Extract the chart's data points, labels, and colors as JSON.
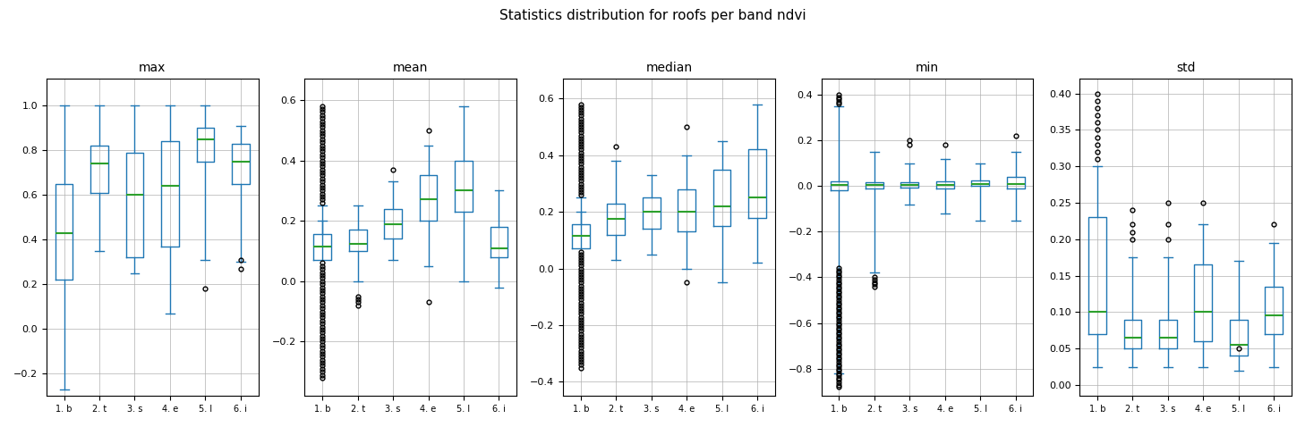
{
  "title": "Statistics distribution for roofs per band ndvi",
  "subplots": [
    "max",
    "mean",
    "median",
    "min",
    "std"
  ],
  "x_labels": [
    "1. b",
    "2. t",
    "3. s",
    "4. e",
    "5. l",
    "6. i"
  ],
  "subplot_data": {
    "max": {
      "ylim": [
        -0.3,
        1.12
      ],
      "yticks": [
        -0.2,
        0.0,
        0.2,
        0.4,
        0.6,
        0.8,
        1.0
      ],
      "boxes": [
        {
          "q1": 0.22,
          "median": 0.43,
          "q3": 0.65,
          "whislo": -0.27,
          "whishi": 1.0,
          "fliers": []
        },
        {
          "q1": 0.61,
          "median": 0.74,
          "q3": 0.82,
          "whislo": 0.35,
          "whishi": 1.0,
          "fliers": []
        },
        {
          "q1": 0.32,
          "median": 0.6,
          "q3": 0.79,
          "whislo": 0.25,
          "whishi": 1.0,
          "fliers": []
        },
        {
          "q1": 0.37,
          "median": 0.64,
          "q3": 0.84,
          "whislo": 0.07,
          "whishi": 1.0,
          "fliers": []
        },
        {
          "q1": 0.75,
          "median": 0.85,
          "q3": 0.9,
          "whislo": 0.31,
          "whishi": 1.0,
          "fliers": [
            0.18
          ]
        },
        {
          "q1": 0.65,
          "median": 0.75,
          "q3": 0.83,
          "whislo": 0.3,
          "whishi": 0.91,
          "fliers": [
            0.27,
            0.31
          ]
        }
      ]
    },
    "mean": {
      "ylim": [
        -0.38,
        0.67
      ],
      "yticks": [
        -0.2,
        0.0,
        0.2,
        0.4,
        0.6
      ],
      "boxes": [
        {
          "q1": 0.07,
          "median": 0.115,
          "q3": 0.155,
          "whislo": 0.2,
          "whishi": 0.25,
          "fliers_dense_lo": [
            -0.32,
            -0.31,
            -0.3,
            -0.29,
            -0.28,
            -0.27,
            -0.26,
            -0.25,
            -0.24,
            -0.23,
            -0.22,
            -0.21,
            -0.2,
            -0.19,
            -0.18,
            -0.17,
            -0.16,
            -0.15,
            -0.14,
            -0.13,
            -0.12,
            -0.11,
            -0.1,
            -0.09,
            -0.08,
            -0.07,
            -0.06,
            -0.05,
            -0.04,
            -0.03,
            -0.02,
            -0.01,
            0.0,
            0.01,
            0.02,
            0.03,
            0.04,
            0.05,
            0.06
          ],
          "fliers_dense_hi": [
            0.26,
            0.27,
            0.28,
            0.29,
            0.3,
            0.31,
            0.32,
            0.33,
            0.34,
            0.35,
            0.36,
            0.37,
            0.38,
            0.39,
            0.4,
            0.41,
            0.42,
            0.43,
            0.44,
            0.45,
            0.46,
            0.47,
            0.48,
            0.49,
            0.5,
            0.51,
            0.52,
            0.53,
            0.54,
            0.55,
            0.56,
            0.57,
            0.58
          ]
        },
        {
          "q1": 0.1,
          "median": 0.125,
          "q3": 0.17,
          "whislo": 0.0,
          "whishi": 0.25,
          "fliers_dense_lo": [],
          "fliers_dense_hi": [
            -0.08,
            -0.07,
            -0.06,
            -0.05
          ]
        },
        {
          "q1": 0.14,
          "median": 0.19,
          "q3": 0.24,
          "whislo": 0.07,
          "whishi": 0.33,
          "fliers_dense_lo": [],
          "fliers_dense_hi": [
            0.37
          ]
        },
        {
          "q1": 0.2,
          "median": 0.27,
          "q3": 0.35,
          "whislo": 0.05,
          "whishi": 0.45,
          "fliers_dense_lo": [
            -0.07
          ],
          "fliers_dense_hi": [
            0.5
          ]
        },
        {
          "q1": 0.23,
          "median": 0.3,
          "q3": 0.4,
          "whislo": 0.0,
          "whishi": 0.58,
          "fliers_dense_lo": [],
          "fliers_dense_hi": []
        },
        {
          "q1": 0.08,
          "median": 0.11,
          "q3": 0.18,
          "whislo": -0.02,
          "whishi": 0.3,
          "fliers_dense_lo": [],
          "fliers_dense_hi": []
        }
      ]
    },
    "median": {
      "ylim": [
        -0.45,
        0.67
      ],
      "yticks": [
        -0.4,
        -0.2,
        0.0,
        0.2,
        0.4,
        0.6
      ],
      "boxes": [
        {
          "q1": 0.07,
          "median": 0.115,
          "q3": 0.155,
          "whislo": 0.2,
          "whishi": 0.25,
          "fliers_dense_lo": [
            -0.35,
            -0.34,
            -0.33,
            -0.32,
            -0.31,
            -0.3,
            -0.29,
            -0.28,
            -0.27,
            -0.26,
            -0.25,
            -0.24,
            -0.23,
            -0.22,
            -0.21,
            -0.2,
            -0.19,
            -0.18,
            -0.17,
            -0.16,
            -0.15,
            -0.14,
            -0.13,
            -0.12,
            -0.11,
            -0.1,
            -0.09,
            -0.08,
            -0.07,
            -0.06,
            -0.05,
            -0.04,
            -0.03,
            -0.02,
            -0.01,
            0.0,
            0.01,
            0.02,
            0.03,
            0.04,
            0.05,
            0.06
          ],
          "fliers_dense_hi": [
            0.26,
            0.27,
            0.28,
            0.29,
            0.3,
            0.31,
            0.32,
            0.33,
            0.34,
            0.35,
            0.36,
            0.37,
            0.38,
            0.39,
            0.4,
            0.41,
            0.42,
            0.43,
            0.44,
            0.45,
            0.46,
            0.47,
            0.48,
            0.49,
            0.5,
            0.51,
            0.52,
            0.53,
            0.54,
            0.55,
            0.56,
            0.57,
            0.58
          ]
        },
        {
          "q1": 0.12,
          "median": 0.175,
          "q3": 0.23,
          "whislo": 0.03,
          "whishi": 0.38,
          "fliers_dense_lo": [],
          "fliers_dense_hi": [
            0.43
          ]
        },
        {
          "q1": 0.14,
          "median": 0.2,
          "q3": 0.25,
          "whislo": 0.05,
          "whishi": 0.33,
          "fliers_dense_lo": [],
          "fliers_dense_hi": []
        },
        {
          "q1": 0.13,
          "median": 0.2,
          "q3": 0.28,
          "whislo": 0.0,
          "whishi": 0.4,
          "fliers_dense_lo": [
            -0.05
          ],
          "fliers_dense_hi": [
            0.5
          ]
        },
        {
          "q1": 0.15,
          "median": 0.22,
          "q3": 0.35,
          "whislo": -0.05,
          "whishi": 0.45,
          "fliers_dense_lo": [],
          "fliers_dense_hi": []
        },
        {
          "q1": 0.18,
          "median": 0.25,
          "q3": 0.42,
          "whislo": 0.02,
          "whishi": 0.58,
          "fliers_dense_lo": [],
          "fliers_dense_hi": []
        }
      ]
    },
    "min": {
      "ylim": [
        -0.92,
        0.47
      ],
      "yticks": [
        -0.8,
        -0.6,
        -0.4,
        -0.2,
        0.0,
        0.2,
        0.4
      ],
      "boxes": [
        {
          "q1": -0.02,
          "median": 0.005,
          "q3": 0.02,
          "whislo": -0.82,
          "whishi": 0.35,
          "fliers_dense_lo": [
            -0.88,
            -0.87,
            -0.86,
            -0.85,
            -0.84,
            -0.83,
            -0.82,
            -0.81,
            -0.8,
            -0.79,
            -0.78,
            -0.77,
            -0.76,
            -0.75,
            -0.74,
            -0.73,
            -0.72,
            -0.71,
            -0.7,
            -0.69,
            -0.68,
            -0.67,
            -0.66,
            -0.65,
            -0.64,
            -0.63,
            -0.62,
            -0.61,
            -0.6,
            -0.59,
            -0.58,
            -0.57,
            -0.56,
            -0.55,
            -0.54,
            -0.53,
            -0.52,
            -0.51,
            -0.5,
            -0.49,
            -0.48,
            -0.47,
            -0.46,
            -0.45,
            -0.44,
            -0.43,
            -0.42,
            -0.41,
            -0.4,
            -0.39,
            -0.38,
            -0.37,
            -0.36
          ],
          "fliers_dense_hi": [
            0.36,
            0.37,
            0.38,
            0.39,
            0.4
          ]
        },
        {
          "q1": -0.01,
          "median": 0.005,
          "q3": 0.015,
          "whislo": -0.38,
          "whishi": 0.15,
          "fliers_dense_lo": [
            -0.44,
            -0.43,
            -0.42,
            -0.41,
            -0.4
          ],
          "fliers_dense_hi": []
        },
        {
          "q1": -0.005,
          "median": 0.005,
          "q3": 0.015,
          "whislo": -0.08,
          "whishi": 0.1,
          "fliers_dense_lo": [],
          "fliers_dense_hi": [
            0.18,
            0.2
          ]
        },
        {
          "q1": -0.01,
          "median": 0.005,
          "q3": 0.02,
          "whislo": -0.12,
          "whishi": 0.12,
          "fliers_dense_lo": [],
          "fliers_dense_hi": [
            0.18
          ]
        },
        {
          "q1": 0.0,
          "median": 0.01,
          "q3": 0.025,
          "whislo": -0.15,
          "whishi": 0.1,
          "fliers_dense_lo": [],
          "fliers_dense_hi": []
        },
        {
          "q1": -0.01,
          "median": 0.01,
          "q3": 0.04,
          "whislo": -0.15,
          "whishi": 0.15,
          "fliers_dense_lo": [],
          "fliers_dense_hi": [
            0.22
          ]
        }
      ]
    },
    "std": {
      "ylim": [
        -0.015,
        0.42
      ],
      "yticks": [
        0.0,
        0.05,
        0.1,
        0.15,
        0.2,
        0.25,
        0.3,
        0.35,
        0.4
      ],
      "boxes": [
        {
          "q1": 0.07,
          "median": 0.1,
          "q3": 0.23,
          "whislo": 0.025,
          "whishi": 0.3,
          "fliers_dense_lo": [],
          "fliers_dense_hi": [
            0.31,
            0.32,
            0.33,
            0.34,
            0.35,
            0.36,
            0.37,
            0.38,
            0.39,
            0.4
          ]
        },
        {
          "q1": 0.05,
          "median": 0.065,
          "q3": 0.09,
          "whislo": 0.025,
          "whishi": 0.175,
          "fliers_dense_lo": [],
          "fliers_dense_hi": [
            0.2,
            0.21,
            0.22,
            0.24
          ]
        },
        {
          "q1": 0.05,
          "median": 0.065,
          "q3": 0.09,
          "whislo": 0.025,
          "whishi": 0.175,
          "fliers_dense_lo": [],
          "fliers_dense_hi": [
            0.2,
            0.22,
            0.25
          ]
        },
        {
          "q1": 0.06,
          "median": 0.1,
          "q3": 0.165,
          "whislo": 0.025,
          "whishi": 0.22,
          "fliers_dense_lo": [],
          "fliers_dense_hi": [
            0.25
          ]
        },
        {
          "q1": 0.04,
          "median": 0.055,
          "q3": 0.09,
          "whislo": 0.02,
          "whishi": 0.17,
          "fliers_dense_lo": [],
          "fliers_dense_hi": [
            0.05
          ]
        },
        {
          "q1": 0.07,
          "median": 0.095,
          "q3": 0.135,
          "whislo": 0.025,
          "whishi": 0.195,
          "fliers_dense_lo": [],
          "fliers_dense_hi": [
            0.22
          ]
        }
      ]
    }
  },
  "box_color": "#1f77b4",
  "median_color": "#2ca02c",
  "flier_color": "black",
  "background_color": "#ffffff",
  "grid_color": "#b0b0b0",
  "figsize": [
    14.58,
    4.78
  ],
  "dpi": 100
}
